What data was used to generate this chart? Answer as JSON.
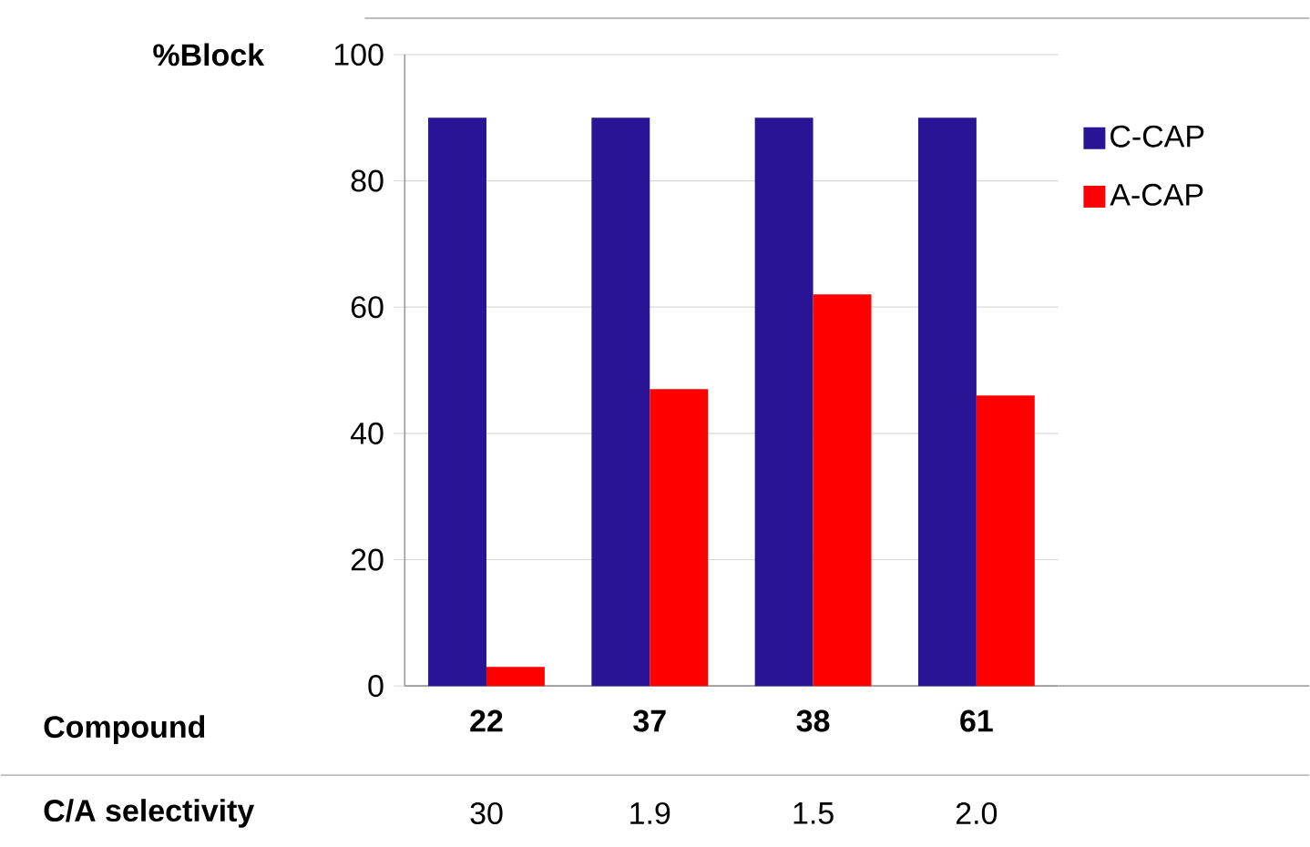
{
  "chart_data": {
    "type": "bar",
    "ylabel": "%Block",
    "xlabel": "Compound",
    "categories": [
      "22",
      "37",
      "38",
      "61"
    ],
    "series": [
      {
        "name": "C-CAP",
        "color": "#2a1496",
        "values": [
          90,
          90,
          90,
          90
        ]
      },
      {
        "name": "A-CAP",
        "color": "#ff0000",
        "values": [
          3,
          47,
          62,
          46
        ]
      }
    ],
    "ylim": [
      0,
      100
    ],
    "yticks": [
      0,
      20,
      40,
      60,
      80,
      100
    ],
    "grid": "y",
    "legend": "right",
    "annotations": [
      "C/A selectivity",
      "30",
      "1.9",
      "1.5",
      "2.0"
    ]
  }
}
